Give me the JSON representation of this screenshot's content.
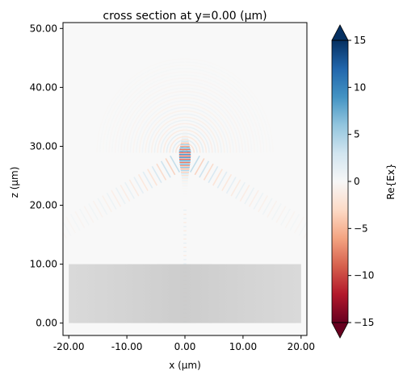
{
  "chart_data": {
    "type": "heatmap",
    "title": "cross section at y=0.00 (μm)",
    "xlabel": "x (μm)",
    "ylabel": "z (μm)",
    "xlim": [
      -21,
      21
    ],
    "ylim": [
      -2.1,
      51
    ],
    "x_ticks": [
      -20,
      -10,
      0,
      10,
      20
    ],
    "x_tick_labels": [
      "-20.00",
      "-10.00",
      "0.00",
      "10.00",
      "20.00"
    ],
    "y_ticks": [
      0,
      10,
      20,
      30,
      40,
      50
    ],
    "y_tick_labels": [
      "0.00",
      "10.00",
      "20.00",
      "30.00",
      "40.00",
      "50.00"
    ],
    "colorbar": {
      "label": "Re{Ex}",
      "min": -15,
      "max": 15,
      "extend": "both",
      "colormap": "RdBu",
      "ticks": [
        -15,
        -10,
        -5,
        0,
        5,
        10,
        15
      ],
      "tick_labels": [
        "−15",
        "−10",
        "−5",
        "0",
        "5",
        "10",
        "15"
      ]
    },
    "regions": [
      {
        "label": "",
        "x_range": [
          -20,
          20
        ],
        "z_range": [
          0,
          10
        ],
        "color": "#c8c8c8"
      }
    ],
    "field": {
      "focus_x": 0,
      "focus_z": 28.5,
      "peak_value": 15,
      "cone_half_angle_deg": 60,
      "wavelength_um": 0.55,
      "cone_apex_z": 28.0
    }
  }
}
